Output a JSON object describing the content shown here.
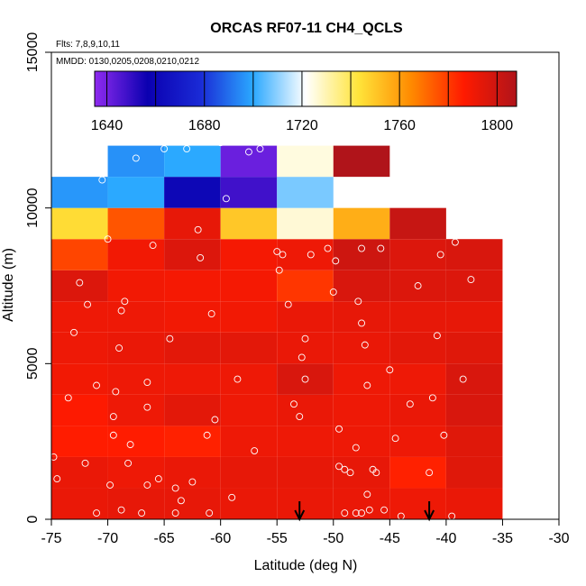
{
  "chart_data": {
    "type": "heatmap",
    "title": "ORCAS RF07-11 CH4_QCLS",
    "annotations": {
      "flights": "Flts: 7,8,9,10,11",
      "dates": "MMDD: 0130,0205,0208,0210,0212"
    },
    "xlabel": "Latitude (deg N)",
    "ylabel": "Altitude (m)",
    "xlim": [
      -75,
      -30
    ],
    "ylim": [
      0,
      15000
    ],
    "x_ticks": [
      -75,
      -70,
      -65,
      -60,
      -55,
      -50,
      -45,
      -40,
      -35,
      -30
    ],
    "y_ticks": [
      0,
      5000,
      10000,
      15000
    ],
    "x_edges": [
      -75,
      -70,
      -65,
      -60,
      -55,
      -50,
      -45,
      -40,
      -35
    ],
    "y_edges": [
      0,
      1000,
      2000,
      3000,
      4000,
      5000,
      6000,
      7000,
      8000,
      9000,
      10000,
      11000,
      12000
    ],
    "grid": [
      [
        1792,
        1793,
        1793,
        1792,
        1792,
        1792,
        1791,
        1792
      ],
      [
        1792,
        1791,
        1792,
        1793,
        1793,
        1793,
        1785,
        1795
      ],
      [
        1786,
        1786,
        1785,
        1791,
        1791,
        1791,
        1791,
        1795
      ],
      [
        1787,
        1791,
        1794,
        1791,
        1792,
        1791,
        1792,
        1797
      ],
      [
        1790,
        1791,
        1791,
        1791,
        1797,
        1791,
        1791,
        1797
      ],
      [
        1791,
        1792,
        1794,
        1794,
        1792,
        1792,
        1794,
        1795
      ],
      [
        1791,
        1791,
        1790,
        1790,
        1792,
        1793,
        1793,
        1793
      ],
      [
        1796,
        1790,
        1789,
        1789,
        1781,
        1797,
        1796,
        1796
      ],
      [
        1778,
        1790,
        1796,
        1789,
        1791,
        1800,
        1796,
        1797
      ],
      [
        1745,
        1775,
        1793,
        1750,
        1726,
        1756,
        1802,
        null
      ],
      [
        1697,
        1700,
        1660,
        1648,
        1708,
        null,
        null,
        null
      ],
      [
        null,
        1696,
        1700,
        1641,
        1725,
        1809,
        null,
        null
      ]
    ],
    "colorbar": {
      "min": 1635,
      "max": 1808,
      "tick_values": [
        1640,
        1680,
        1720,
        1760,
        1800
      ],
      "tick_labels": [
        "1640",
        "1680",
        "1720",
        "1760",
        "1800"
      ],
      "boundaries": [
        1640,
        1660,
        1680,
        1700,
        1720,
        1740,
        1760,
        1780,
        1800
      ],
      "colors": [
        "#8f2bf0",
        "#0b00b0",
        "#1a2ad6",
        "#2aa8ff",
        "#ffffff",
        "#ffe43a",
        "#ff8a00",
        "#ff1a00",
        "#b0141a"
      ]
    },
    "markers": [
      {
        "lat": -53,
        "label": "arrow"
      },
      {
        "lat": -41.5,
        "label": "arrow"
      }
    ],
    "points": [
      [
        -74.8,
        2000
      ],
      [
        -74.5,
        1300
      ],
      [
        -73.5,
        3900
      ],
      [
        -73.0,
        6000
      ],
      [
        -72.5,
        7600
      ],
      [
        -72.0,
        1800
      ],
      [
        -71.8,
        6900
      ],
      [
        -71.0,
        4300
      ],
      [
        -70.5,
        10900
      ],
      [
        -70.0,
        9000
      ],
      [
        -69.5,
        2700
      ],
      [
        -69.5,
        3300
      ],
      [
        -69.3,
        4100
      ],
      [
        -69.0,
        5500
      ],
      [
        -68.8,
        300
      ],
      [
        -68.8,
        6700
      ],
      [
        -68.5,
        7000
      ],
      [
        -68.2,
        1800
      ],
      [
        -68.0,
        2400
      ],
      [
        -67.5,
        11600
      ],
      [
        -67.0,
        200
      ],
      [
        -66.5,
        4400
      ],
      [
        -66.5,
        3600
      ],
      [
        -66.0,
        8800
      ],
      [
        -65.5,
        1300
      ],
      [
        -65.0,
        11900
      ],
      [
        -64.5,
        5800
      ],
      [
        -64.0,
        1000
      ],
      [
        -63.5,
        600
      ],
      [
        -63.0,
        11900
      ],
      [
        -62.5,
        1200
      ],
      [
        -62.0,
        9300
      ],
      [
        -61.8,
        8400
      ],
      [
        -61.2,
        2700
      ],
      [
        -60.8,
        6600
      ],
      [
        -60.5,
        3200
      ],
      [
        -60.0,
        12100
      ],
      [
        -59.5,
        10300
      ],
      [
        -59.0,
        700
      ],
      [
        -58.5,
        4500
      ],
      [
        -57.5,
        11800
      ],
      [
        -57.0,
        2200
      ],
      [
        -56.5,
        11900
      ],
      [
        -55.0,
        8600
      ],
      [
        -54.8,
        8000
      ],
      [
        -54.5,
        8500
      ],
      [
        -54.0,
        6900
      ],
      [
        -53.5,
        3700
      ],
      [
        -53.0,
        3300
      ],
      [
        -52.8,
        5200
      ],
      [
        -52.5,
        5800
      ],
      [
        -52.5,
        4500
      ],
      [
        -52.0,
        8500
      ],
      [
        -50.5,
        8700
      ],
      [
        -50.0,
        7300
      ],
      [
        -49.8,
        8300
      ],
      [
        -49.5,
        1700
      ],
      [
        -49.5,
        2900
      ],
      [
        -49.0,
        1600
      ],
      [
        -48.5,
        1500
      ],
      [
        -48.0,
        2300
      ],
      [
        -47.8,
        7000
      ],
      [
        -47.5,
        6300
      ],
      [
        -47.5,
        8700
      ],
      [
        -47.2,
        5600
      ],
      [
        -47.0,
        4300
      ],
      [
        -47.0,
        800
      ],
      [
        -46.5,
        1600
      ],
      [
        -46.2,
        1500
      ],
      [
        -45.8,
        8700
      ],
      [
        -45.5,
        300
      ],
      [
        -45.0,
        4800
      ],
      [
        -44.5,
        2600
      ],
      [
        -44.0,
        100
      ],
      [
        -43.2,
        3700
      ],
      [
        -42.5,
        7500
      ],
      [
        -41.5,
        1500
      ],
      [
        -41.2,
        3900
      ],
      [
        -40.8,
        5900
      ],
      [
        -40.5,
        8500
      ],
      [
        -40.2,
        2700
      ],
      [
        -39.5,
        100
      ],
      [
        -39.2,
        8900
      ],
      [
        -38.5,
        4500
      ],
      [
        -37.8,
        7700
      ],
      [
        -71.0,
        200
      ],
      [
        -69.8,
        1100
      ],
      [
        -66.5,
        1100
      ],
      [
        -64.0,
        200
      ],
      [
        -61.0,
        200
      ],
      [
        -49.0,
        200
      ],
      [
        -48.0,
        200
      ],
      [
        -47.5,
        200
      ],
      [
        -46.8,
        300
      ]
    ]
  }
}
